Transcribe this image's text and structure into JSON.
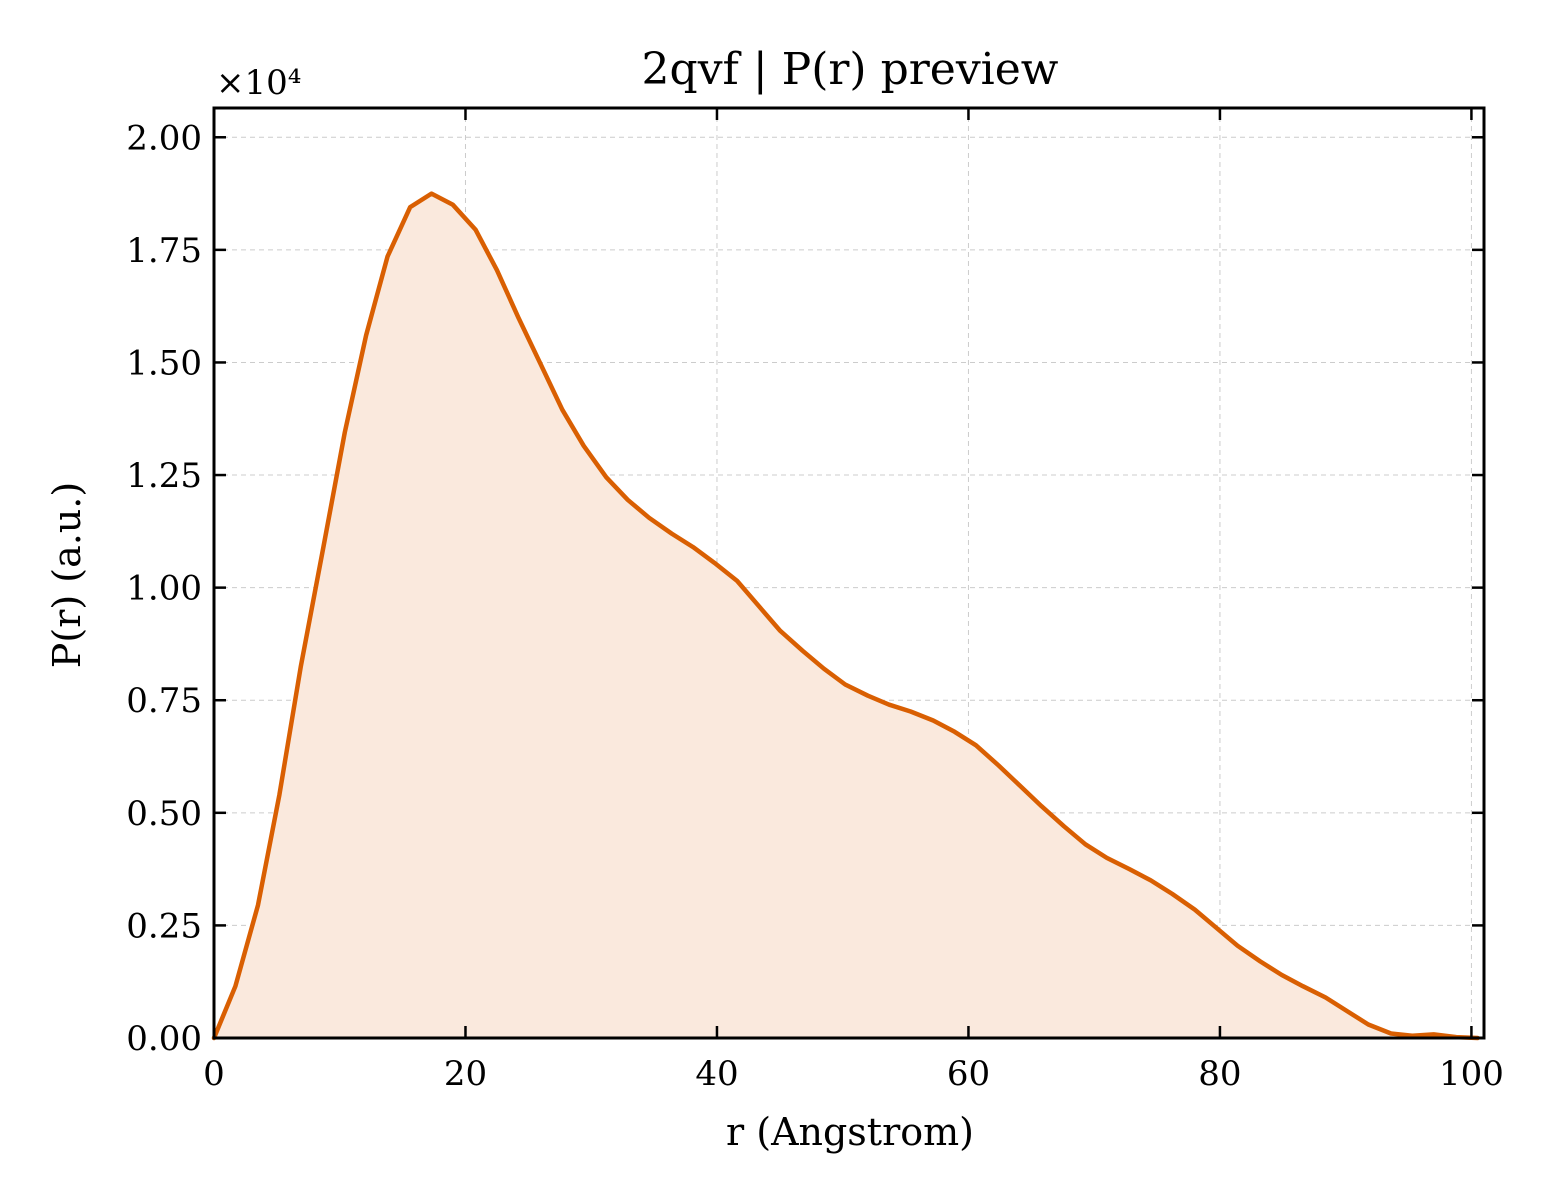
{
  "chart_data": {
    "type": "area",
    "title": "2qvf | P(r) preview",
    "xlabel": "r (Angstrom)",
    "ylabel": "P(r) (a.u.)",
    "y_multiplier_label": "×10⁴",
    "xlim": [
      0,
      101
    ],
    "ylim": [
      0,
      20650
    ],
    "x_ticks": [
      0,
      20,
      40,
      60,
      80,
      100
    ],
    "x_tick_labels": [
      "0",
      "20",
      "40",
      "60",
      "80",
      "100"
    ],
    "y_ticks": [
      0,
      2500,
      5000,
      7500,
      10000,
      12500,
      15000,
      17500,
      20000
    ],
    "y_tick_labels": [
      "0.00",
      "0.25",
      "0.50",
      "0.75",
      "1.00",
      "1.25",
      "1.50",
      "1.75",
      "2.00"
    ],
    "grid": true,
    "colors": {
      "line": "#d95f02",
      "fill": "#fae9dd"
    },
    "series": [
      {
        "x": [
          0,
          1.7,
          3.5,
          5.2,
          6.9,
          8.7,
          10.4,
          12.1,
          13.8,
          15.6,
          17.3,
          19.0,
          20.8,
          22.5,
          24.2,
          26.0,
          27.7,
          29.4,
          31.2,
          32.9,
          34.6,
          36.4,
          38.1,
          39.8,
          41.6,
          43.3,
          45.0,
          46.8,
          48.5,
          50.2,
          52.0,
          53.7,
          55.4,
          57.2,
          58.9,
          60.6,
          62.4,
          64.1,
          65.8,
          67.6,
          69.3,
          71.0,
          72.8,
          74.5,
          76.2,
          78.0,
          79.7,
          81.4,
          83.2,
          84.9,
          86.6,
          88.4,
          90.1,
          91.8,
          93.6,
          95.3,
          97.0,
          98.8,
          100.5
        ],
        "values": [
          0,
          1150,
          2950,
          5400,
          8250,
          10900,
          13450,
          15600,
          17350,
          18450,
          18750,
          18500,
          17950,
          17050,
          16000,
          14950,
          13950,
          13150,
          12450,
          11950,
          11550,
          11200,
          10900,
          10550,
          10150,
          9600,
          9050,
          8600,
          8200,
          7850,
          7600,
          7400,
          7250,
          7050,
          6800,
          6500,
          6050,
          5600,
          5150,
          4700,
          4300,
          4000,
          3750,
          3500,
          3200,
          2850,
          2450,
          2050,
          1700,
          1400,
          1150,
          900,
          600,
          300,
          100,
          50,
          80,
          20,
          0
        ]
      }
    ]
  }
}
